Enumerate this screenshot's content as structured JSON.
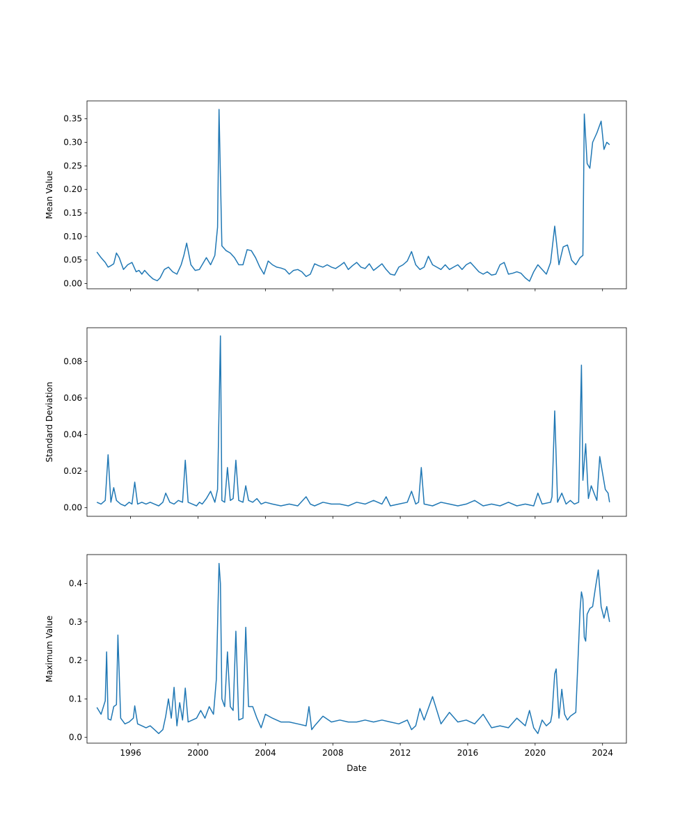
{
  "chart_data": [
    {
      "type": "line",
      "title": "",
      "xlabel": "",
      "ylabel": "Mean Value",
      "xlim": [
        "1993-06-01",
        "2025-06-01"
      ],
      "ylim": [
        -0.011,
        0.388
      ],
      "yticks": [
        0.0,
        0.05,
        0.1,
        0.15,
        0.2,
        0.25,
        0.3,
        0.35
      ],
      "ytick_labels": [
        "0.00",
        "0.05",
        "0.10",
        "0.15",
        "0.20",
        "0.25",
        "0.30",
        "0.35"
      ],
      "x_tick_labels_shown": false,
      "grid": false,
      "line_color": "#1f77b4",
      "series": [
        {
          "x": [
            "1994-01",
            "1994-04",
            "1994-07",
            "1994-09",
            "1994-11",
            "1995-01",
            "1995-03",
            "1995-05",
            "1995-08",
            "1995-11",
            "1996-02",
            "1996-05",
            "1996-07",
            "1996-09",
            "1996-11",
            "1997-02",
            "1997-05",
            "1997-08",
            "1997-10",
            "1998-01",
            "1998-04",
            "1998-07",
            "1998-10",
            "1999-01",
            "1999-03",
            "1999-05",
            "1999-08",
            "1999-11",
            "2000-02",
            "2000-04",
            "2000-07",
            "2000-10",
            "2001-01",
            "2001-03",
            "2001-04",
            "2001-06",
            "2001-09",
            "2001-12",
            "2002-03",
            "2002-06",
            "2002-09",
            "2002-12",
            "2003-03",
            "2003-06",
            "2003-09",
            "2003-12",
            "2004-03",
            "2004-06",
            "2004-09",
            "2004-12",
            "2005-03",
            "2005-06",
            "2005-09",
            "2005-12",
            "2006-03",
            "2006-06",
            "2006-09",
            "2006-12",
            "2007-03",
            "2007-06",
            "2007-09",
            "2007-12",
            "2008-03",
            "2008-06",
            "2008-09",
            "2008-12",
            "2009-03",
            "2009-06",
            "2009-09",
            "2009-12",
            "2010-03",
            "2010-06",
            "2010-09",
            "2010-12",
            "2011-03",
            "2011-06",
            "2011-09",
            "2011-12",
            "2012-03",
            "2012-06",
            "2012-09",
            "2012-12",
            "2013-03",
            "2013-06",
            "2013-09",
            "2013-12",
            "2014-03",
            "2014-06",
            "2014-09",
            "2014-12",
            "2015-03",
            "2015-06",
            "2015-09",
            "2015-12",
            "2016-03",
            "2016-06",
            "2016-09",
            "2016-12",
            "2017-03",
            "2017-06",
            "2017-09",
            "2017-12",
            "2018-03",
            "2018-06",
            "2018-09",
            "2018-12",
            "2019-03",
            "2019-06",
            "2019-09",
            "2019-12",
            "2020-03",
            "2020-06",
            "2020-09",
            "2020-12",
            "2021-03",
            "2021-06",
            "2021-09",
            "2021-12",
            "2022-03",
            "2022-06",
            "2022-09",
            "2022-11",
            "2022-12",
            "2023-02",
            "2023-04",
            "2023-06",
            "2023-09",
            "2023-12",
            "2024-02",
            "2024-04",
            "2024-06"
          ],
          "y": [
            0.067,
            0.055,
            0.045,
            0.035,
            0.038,
            0.042,
            0.065,
            0.055,
            0.03,
            0.04,
            0.045,
            0.025,
            0.028,
            0.02,
            0.028,
            0.018,
            0.01,
            0.006,
            0.012,
            0.03,
            0.035,
            0.025,
            0.02,
            0.04,
            0.06,
            0.086,
            0.04,
            0.028,
            0.03,
            0.04,
            0.055,
            0.04,
            0.06,
            0.12,
            0.37,
            0.08,
            0.07,
            0.065,
            0.055,
            0.04,
            0.04,
            0.072,
            0.07,
            0.055,
            0.035,
            0.02,
            0.048,
            0.04,
            0.035,
            0.033,
            0.03,
            0.02,
            0.028,
            0.03,
            0.025,
            0.015,
            0.02,
            0.042,
            0.038,
            0.035,
            0.04,
            0.035,
            0.032,
            0.038,
            0.045,
            0.03,
            0.038,
            0.045,
            0.035,
            0.032,
            0.042,
            0.028,
            0.035,
            0.042,
            0.03,
            0.02,
            0.018,
            0.035,
            0.04,
            0.048,
            0.068,
            0.04,
            0.03,
            0.035,
            0.058,
            0.04,
            0.035,
            0.03,
            0.04,
            0.03,
            0.035,
            0.04,
            0.03,
            0.04,
            0.045,
            0.035,
            0.025,
            0.02,
            0.025,
            0.018,
            0.02,
            0.04,
            0.045,
            0.02,
            0.022,
            0.025,
            0.022,
            0.012,
            0.005,
            0.025,
            0.04,
            0.03,
            0.02,
            0.045,
            0.122,
            0.04,
            0.078,
            0.082,
            0.05,
            0.04,
            0.055,
            0.06,
            0.36,
            0.255,
            0.245,
            0.3,
            0.32,
            0.345,
            0.285,
            0.3,
            0.295
          ]
        }
      ]
    },
    {
      "type": "line",
      "title": "",
      "xlabel": "",
      "ylabel": "Standard Deviation",
      "xlim": [
        "1993-06-01",
        "2025-06-01"
      ],
      "ylim": [
        -0.0047,
        0.0985
      ],
      "yticks": [
        0.0,
        0.02,
        0.04,
        0.06,
        0.08
      ],
      "ytick_labels": [
        "0.00",
        "0.02",
        "0.04",
        "0.06",
        "0.08"
      ],
      "x_tick_labels_shown": false,
      "grid": false,
      "line_color": "#1f77b4",
      "series": [
        {
          "x": [
            "1994-01",
            "1994-04",
            "1994-07",
            "1994-09",
            "1994-11",
            "1995-01",
            "1995-03",
            "1995-06",
            "1995-09",
            "1995-12",
            "1996-02",
            "1996-04",
            "1996-06",
            "1996-09",
            "1996-12",
            "1997-03",
            "1997-06",
            "1997-09",
            "1997-12",
            "1998-02",
            "1998-05",
            "1998-08",
            "1998-11",
            "1999-02",
            "1999-04",
            "1999-06",
            "1999-09",
            "1999-12",
            "2000-02",
            "2000-04",
            "2000-07",
            "2000-10",
            "2001-01",
            "2001-03",
            "2001-05",
            "2001-06",
            "2001-08",
            "2001-10",
            "2001-12",
            "2002-02",
            "2002-04",
            "2002-06",
            "2002-09",
            "2002-11",
            "2003-01",
            "2003-04",
            "2003-07",
            "2003-10",
            "2004-01",
            "2004-06",
            "2004-12",
            "2005-06",
            "2005-12",
            "2006-06",
            "2006-09",
            "2006-12",
            "2007-06",
            "2007-12",
            "2008-06",
            "2008-12",
            "2009-06",
            "2009-12",
            "2010-06",
            "2010-12",
            "2011-03",
            "2011-06",
            "2011-12",
            "2012-06",
            "2012-09",
            "2012-12",
            "2013-02",
            "2013-04",
            "2013-06",
            "2013-12",
            "2014-06",
            "2014-12",
            "2015-06",
            "2015-12",
            "2016-06",
            "2016-12",
            "2017-06",
            "2017-12",
            "2018-06",
            "2018-12",
            "2019-06",
            "2019-12",
            "2020-03",
            "2020-06",
            "2020-12",
            "2021-01",
            "2021-03",
            "2021-05",
            "2021-08",
            "2021-11",
            "2022-02",
            "2022-05",
            "2022-08",
            "2022-10",
            "2022-11",
            "2023-01",
            "2023-03",
            "2023-05",
            "2023-07",
            "2023-09",
            "2023-11",
            "2024-01",
            "2024-03",
            "2024-05",
            "2024-06"
          ],
          "y": [
            0.003,
            0.002,
            0.004,
            0.029,
            0.003,
            0.011,
            0.004,
            0.002,
            0.001,
            0.003,
            0.002,
            0.014,
            0.002,
            0.003,
            0.002,
            0.003,
            0.002,
            0.001,
            0.003,
            0.008,
            0.003,
            0.002,
            0.004,
            0.003,
            0.026,
            0.003,
            0.002,
            0.001,
            0.003,
            0.002,
            0.005,
            0.009,
            0.003,
            0.01,
            0.094,
            0.004,
            0.003,
            0.022,
            0.004,
            0.005,
            0.026,
            0.004,
            0.003,
            0.012,
            0.004,
            0.003,
            0.005,
            0.002,
            0.003,
            0.002,
            0.001,
            0.002,
            0.001,
            0.006,
            0.002,
            0.001,
            0.003,
            0.002,
            0.002,
            0.001,
            0.003,
            0.002,
            0.004,
            0.002,
            0.006,
            0.001,
            0.002,
            0.003,
            0.009,
            0.002,
            0.003,
            0.022,
            0.002,
            0.001,
            0.003,
            0.002,
            0.001,
            0.002,
            0.004,
            0.001,
            0.002,
            0.001,
            0.003,
            0.001,
            0.002,
            0.001,
            0.008,
            0.002,
            0.003,
            0.006,
            0.053,
            0.003,
            0.008,
            0.002,
            0.004,
            0.002,
            0.003,
            0.078,
            0.015,
            0.035,
            0.005,
            0.012,
            0.008,
            0.004,
            0.028,
            0.019,
            0.01,
            0.008,
            0.003
          ]
        }
      ]
    },
    {
      "type": "line",
      "title": "",
      "xlabel": "Date",
      "ylabel": "Maximum Value",
      "xlim": [
        "1993-06-01",
        "2025-06-01"
      ],
      "ylim": [
        -0.015,
        0.475
      ],
      "yticks": [
        0.0,
        0.1,
        0.2,
        0.3,
        0.4
      ],
      "ytick_labels": [
        "0.0",
        "0.1",
        "0.2",
        "0.3",
        "0.4"
      ],
      "xticks": [
        "1996-01-01",
        "2000-01-01",
        "2004-01-01",
        "2008-01-01",
        "2012-01-01",
        "2016-01-01",
        "2020-01-01",
        "2024-01-01"
      ],
      "xtick_labels": [
        "1996",
        "2000",
        "2004",
        "2008",
        "2012",
        "2016",
        "2020",
        "2024"
      ],
      "grid": false,
      "line_color": "#1f77b4",
      "series": [
        {
          "x": [
            "1994-01",
            "1994-04",
            "1994-07",
            "1994-08",
            "1994-09",
            "1994-11",
            "1995-01",
            "1995-03",
            "1995-04",
            "1995-06",
            "1995-09",
            "1995-12",
            "1996-03",
            "1996-04",
            "1996-06",
            "1996-09",
            "1996-12",
            "1997-03",
            "1997-06",
            "1997-09",
            "1997-12",
            "1998-02",
            "1998-04",
            "1998-06",
            "1998-08",
            "1998-10",
            "1998-12",
            "1999-02",
            "1999-04",
            "1999-06",
            "1999-09",
            "1999-12",
            "2000-03",
            "2000-06",
            "2000-09",
            "2000-12",
            "2001-02",
            "2001-04",
            "2001-05",
            "2001-06",
            "2001-08",
            "2001-10",
            "2001-12",
            "2002-02",
            "2002-04",
            "2002-06",
            "2002-09",
            "2002-11",
            "2003-01",
            "2003-04",
            "2003-07",
            "2003-10",
            "2004-01",
            "2004-06",
            "2004-12",
            "2005-06",
            "2005-12",
            "2006-06",
            "2006-08",
            "2006-10",
            "2006-12",
            "2007-06",
            "2007-12",
            "2008-06",
            "2008-12",
            "2009-06",
            "2009-12",
            "2010-06",
            "2010-12",
            "2011-06",
            "2011-12",
            "2012-06",
            "2012-09",
            "2012-12",
            "2013-03",
            "2013-06",
            "2013-12",
            "2014-06",
            "2014-12",
            "2015-06",
            "2015-12",
            "2016-06",
            "2016-12",
            "2017-06",
            "2017-12",
            "2018-06",
            "2018-12",
            "2019-06",
            "2019-09",
            "2019-12",
            "2020-03",
            "2020-06",
            "2020-09",
            "2020-12",
            "2021-01",
            "2021-03",
            "2021-04",
            "2021-06",
            "2021-08",
            "2021-10",
            "2021-12",
            "2022-02",
            "2022-04",
            "2022-06",
            "2022-09",
            "2022-10",
            "2022-11",
            "2022-12",
            "2023-01",
            "2023-02",
            "2023-04",
            "2023-06",
            "2023-08",
            "2023-10",
            "2023-12",
            "2024-02",
            "2024-04",
            "2024-06"
          ],
          "y": [
            0.078,
            0.06,
            0.095,
            0.222,
            0.048,
            0.045,
            0.08,
            0.085,
            0.266,
            0.05,
            0.035,
            0.04,
            0.05,
            0.082,
            0.035,
            0.03,
            0.025,
            0.03,
            0.02,
            0.01,
            0.02,
            0.055,
            0.1,
            0.05,
            0.13,
            0.03,
            0.09,
            0.045,
            0.128,
            0.04,
            0.045,
            0.05,
            0.07,
            0.05,
            0.08,
            0.06,
            0.15,
            0.452,
            0.4,
            0.1,
            0.08,
            0.222,
            0.08,
            0.07,
            0.276,
            0.045,
            0.05,
            0.286,
            0.08,
            0.08,
            0.05,
            0.025,
            0.06,
            0.05,
            0.04,
            0.04,
            0.035,
            0.03,
            0.08,
            0.02,
            0.03,
            0.055,
            0.04,
            0.045,
            0.04,
            0.04,
            0.045,
            0.04,
            0.045,
            0.04,
            0.035,
            0.045,
            0.02,
            0.03,
            0.075,
            0.045,
            0.106,
            0.035,
            0.065,
            0.04,
            0.045,
            0.035,
            0.06,
            0.025,
            0.03,
            0.025,
            0.05,
            0.03,
            0.07,
            0.025,
            0.01,
            0.045,
            0.03,
            0.04,
            0.06,
            0.165,
            0.178,
            0.05,
            0.125,
            0.06,
            0.045,
            0.055,
            0.06,
            0.065,
            0.33,
            0.378,
            0.36,
            0.26,
            0.25,
            0.32,
            0.335,
            0.34,
            0.39,
            0.435,
            0.34,
            0.31,
            0.34,
            0.3
          ]
        }
      ]
    }
  ]
}
